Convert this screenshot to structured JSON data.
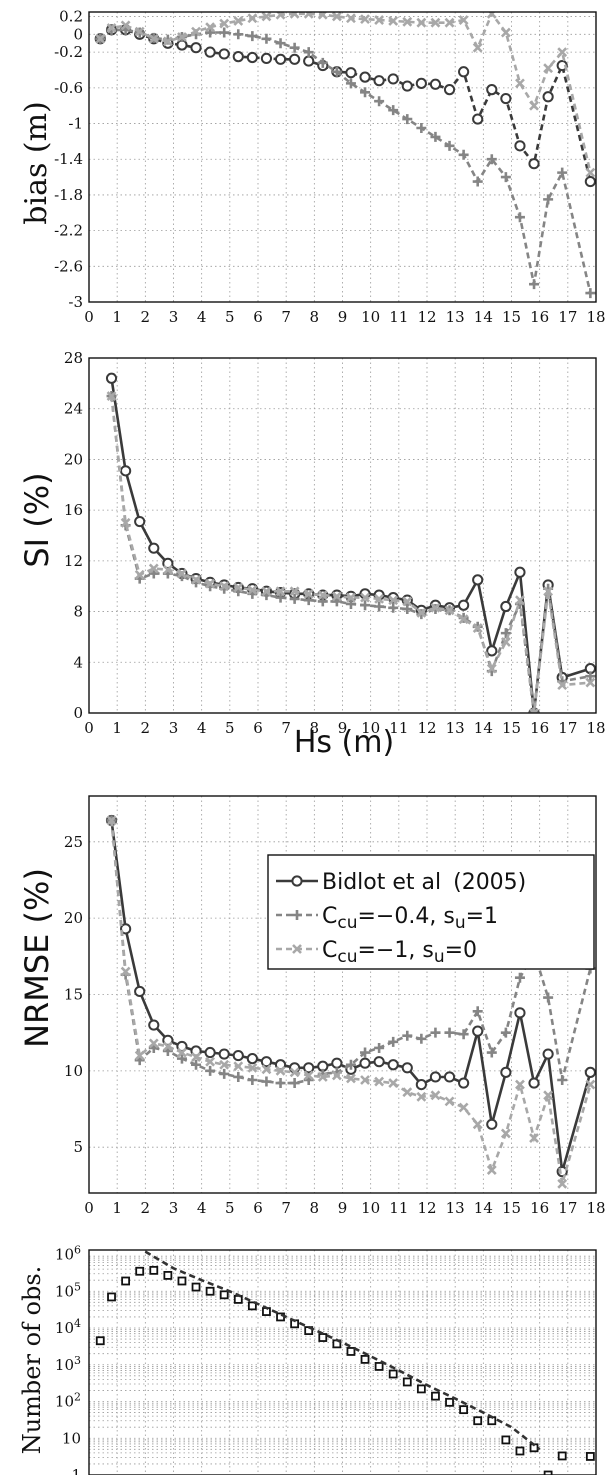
{
  "chart_data": [
    {
      "id": "bias",
      "type": "line",
      "ylabel": "bias (m)",
      "xlabel": "",
      "xlim": [
        0,
        18
      ],
      "ylim": [
        -3,
        0.25
      ],
      "xticks": [
        0,
        1,
        2,
        3,
        4,
        5,
        6,
        7,
        8,
        9,
        10,
        11,
        12,
        13,
        14,
        15,
        16,
        17,
        18
      ],
      "yticks": [
        0.2,
        0,
        -0.2,
        -0.6,
        -1,
        -1.4,
        -1.8,
        -2.2,
        -2.6,
        -3
      ],
      "ytick_labels": [
        "0.2",
        "0",
        "-0.2",
        "-0.6",
        "-1",
        "-1.4",
        "-1.8",
        "-2.2",
        "-2.6",
        "-3"
      ],
      "grid": true,
      "series": [
        {
          "name": "Bidlot et al (2005)",
          "color": "#3a3a3a",
          "marker": "o",
          "dash": "6,4",
          "x": [
            0.4,
            0.8,
            1.3,
            1.8,
            2.3,
            2.8,
            3.3,
            3.8,
            4.3,
            4.8,
            5.3,
            5.8,
            6.3,
            6.8,
            7.3,
            7.8,
            8.3,
            8.8,
            9.3,
            9.8,
            10.3,
            10.8,
            11.3,
            11.8,
            12.3,
            12.8,
            13.3,
            13.8,
            14.3,
            14.8,
            15.3,
            15.8,
            16.3,
            16.8,
            17.8
          ],
          "y": [
            -0.05,
            0.05,
            0.05,
            0.0,
            -0.05,
            -0.1,
            -0.12,
            -0.15,
            -0.2,
            -0.22,
            -0.25,
            -0.26,
            -0.27,
            -0.28,
            -0.28,
            -0.3,
            -0.35,
            -0.42,
            -0.43,
            -0.48,
            -0.52,
            -0.5,
            -0.58,
            -0.55,
            -0.56,
            -0.62,
            -0.42,
            -0.95,
            -0.62,
            -0.72,
            -1.25,
            -1.45,
            -0.7,
            -0.35,
            -1.65
          ]
        },
        {
          "name": "Ccu=−0.4, su=1",
          "color": "#858585",
          "marker": "+",
          "dash": "6,4",
          "x": [
            0.4,
            0.8,
            1.3,
            1.8,
            2.3,
            2.8,
            3.3,
            3.8,
            4.3,
            4.8,
            5.3,
            5.8,
            6.3,
            6.8,
            7.3,
            7.8,
            8.3,
            8.8,
            9.3,
            9.8,
            10.3,
            10.8,
            11.3,
            11.8,
            12.3,
            12.8,
            13.3,
            13.8,
            14.3,
            14.8,
            15.3,
            15.8,
            16.3,
            16.8,
            17.8
          ],
          "y": [
            -0.05,
            0.05,
            0.05,
            0.02,
            -0.04,
            -0.06,
            -0.03,
            0.0,
            0.02,
            0.02,
            0.0,
            -0.02,
            -0.05,
            -0.1,
            -0.15,
            -0.2,
            -0.32,
            -0.42,
            -0.55,
            -0.65,
            -0.75,
            -0.85,
            -0.95,
            -1.05,
            -1.15,
            -1.25,
            -1.35,
            -1.65,
            -1.4,
            -1.6,
            -2.05,
            -2.8,
            -1.85,
            -1.55,
            -2.9
          ]
        },
        {
          "name": "Ccu=−1,    su=0",
          "color": "#a8a8a8",
          "marker": "x",
          "dash": "6,4",
          "x": [
            0.4,
            0.8,
            1.3,
            1.8,
            2.3,
            2.8,
            3.3,
            3.8,
            4.3,
            4.8,
            5.3,
            5.8,
            6.3,
            6.8,
            7.3,
            7.8,
            8.3,
            8.8,
            9.3,
            9.8,
            10.3,
            10.8,
            11.3,
            11.8,
            12.3,
            12.8,
            13.3,
            13.8,
            14.3,
            14.8,
            15.3,
            15.8,
            16.3,
            16.8,
            17.8
          ],
          "y": [
            -0.05,
            0.07,
            0.1,
            0.03,
            -0.05,
            -0.08,
            -0.03,
            0.03,
            0.08,
            0.12,
            0.15,
            0.18,
            0.2,
            0.22,
            0.23,
            0.23,
            0.22,
            0.2,
            0.18,
            0.17,
            0.16,
            0.15,
            0.14,
            0.13,
            0.13,
            0.13,
            0.16,
            -0.15,
            0.23,
            0.02,
            -0.55,
            -0.8,
            -0.38,
            -0.2,
            -1.55
          ]
        }
      ]
    },
    {
      "id": "si",
      "type": "line",
      "ylabel": "SI (%)",
      "xlabel": "Hs (m)",
      "xlim": [
        0,
        18
      ],
      "ylim": [
        0,
        28
      ],
      "xticks": [
        0,
        1,
        2,
        3,
        4,
        5,
        6,
        7,
        8,
        9,
        10,
        11,
        12,
        13,
        14,
        15,
        16,
        17,
        18
      ],
      "yticks": [
        0,
        4,
        8,
        12,
        16,
        20,
        24,
        28
      ],
      "grid": true,
      "series": [
        {
          "name": "Bidlot et al (2005)",
          "color": "#3a3a3a",
          "marker": "o",
          "dash": "",
          "x": [
            0.8,
            1.3,
            1.8,
            2.3,
            2.8,
            3.3,
            3.8,
            4.3,
            4.8,
            5.3,
            5.8,
            6.3,
            6.8,
            7.3,
            7.8,
            8.3,
            8.8,
            9.3,
            9.8,
            10.3,
            10.8,
            11.3,
            11.8,
            12.3,
            12.8,
            13.3,
            13.8,
            14.3,
            14.8,
            15.3,
            15.8,
            16.3,
            16.8,
            17.8
          ],
          "y": [
            26.4,
            19.1,
            15.1,
            13.0,
            11.8,
            11.0,
            10.6,
            10.3,
            10.1,
            9.9,
            9.8,
            9.6,
            9.5,
            9.4,
            9.4,
            9.3,
            9.3,
            9.2,
            9.4,
            9.3,
            9.1,
            8.9,
            8.1,
            8.5,
            8.3,
            8.5,
            10.5,
            4.9,
            8.4,
            11.1,
            0.0,
            10.1,
            2.8,
            3.5
          ]
        },
        {
          "name": "Ccu=−0.4, su=1",
          "color": "#858585",
          "marker": "+",
          "dash": "6,4",
          "x": [
            0.8,
            1.3,
            1.8,
            2.3,
            2.8,
            3.3,
            3.8,
            4.3,
            4.8,
            5.3,
            5.8,
            6.3,
            6.8,
            7.3,
            7.8,
            8.3,
            8.8,
            9.3,
            9.8,
            10.3,
            10.8,
            11.3,
            11.8,
            12.3,
            12.8,
            13.3,
            13.8,
            14.3,
            14.8,
            15.3,
            15.8,
            16.3,
            16.8,
            17.8
          ],
          "y": [
            25.0,
            14.8,
            10.6,
            11.0,
            11.0,
            10.8,
            10.3,
            10.0,
            9.8,
            9.6,
            9.4,
            9.3,
            9.1,
            9.0,
            8.9,
            8.8,
            8.8,
            8.6,
            8.5,
            8.4,
            8.3,
            8.2,
            7.8,
            8.2,
            8.1,
            7.5,
            6.8,
            3.3,
            6.3,
            8.6,
            0.0,
            9.8,
            2.5,
            2.9
          ]
        },
        {
          "name": "Ccu=−1,    su=0",
          "color": "#a8a8a8",
          "marker": "x",
          "dash": "6,4",
          "x": [
            0.8,
            1.3,
            1.8,
            2.3,
            2.8,
            3.3,
            3.8,
            4.3,
            4.8,
            5.3,
            5.8,
            6.3,
            6.8,
            7.3,
            7.8,
            8.3,
            8.8,
            9.3,
            9.8,
            10.3,
            10.8,
            11.3,
            11.8,
            12.3,
            12.8,
            13.3,
            13.8,
            14.3,
            14.8,
            15.3,
            15.8,
            16.3,
            16.8,
            17.8
          ],
          "y": [
            25.0,
            15.0,
            10.9,
            11.4,
            11.3,
            11.0,
            10.5,
            10.2,
            10.0,
            9.9,
            9.7,
            9.6,
            9.6,
            9.6,
            9.4,
            9.3,
            9.2,
            9.1,
            9.1,
            9.0,
            8.9,
            8.8,
            7.9,
            8.3,
            8.1,
            7.4,
            6.7,
            3.5,
            5.6,
            8.9,
            0.0,
            9.6,
            2.2,
            2.4
          ]
        }
      ]
    },
    {
      "id": "nrmse",
      "type": "line",
      "ylabel": "NRMSE (%)",
      "xlabel": "",
      "xlim": [
        0,
        18
      ],
      "ylim": [
        2,
        28
      ],
      "xticks": [
        0,
        1,
        2,
        3,
        4,
        5,
        6,
        7,
        8,
        9,
        10,
        11,
        12,
        13,
        14,
        15,
        16,
        17,
        18
      ],
      "yticks": [
        5,
        10,
        15,
        20,
        25
      ],
      "grid": true,
      "legend": {
        "placement": "right",
        "entries": [
          {
            "prefix": "",
            "main": "Bidlot et al",
            "spacer": "  ",
            "sub": "",
            "after": "",
            "tail": "(2005)"
          },
          {
            "prefix": "C",
            "main": "",
            "spacer": "",
            "sub": "cu",
            "after": "=−0.4, ",
            "tail": "s",
            "sub2": "u",
            "tail2": "=1"
          },
          {
            "prefix": "C",
            "main": "",
            "spacer": "",
            "sub": "cu",
            "after": "=−1,     ",
            "tail": "s",
            "sub2": "u",
            "tail2": "=0"
          }
        ]
      },
      "series": [
        {
          "name": "Bidlot et al (2005)",
          "color": "#3a3a3a",
          "marker": "o",
          "dash": "",
          "x": [
            0.8,
            1.3,
            1.8,
            2.3,
            2.8,
            3.3,
            3.8,
            4.3,
            4.8,
            5.3,
            5.8,
            6.3,
            6.8,
            7.3,
            7.8,
            8.3,
            8.8,
            9.3,
            9.8,
            10.3,
            10.8,
            11.3,
            11.8,
            12.3,
            12.8,
            13.3,
            13.8,
            14.3,
            14.8,
            15.3,
            15.8,
            16.3,
            16.8,
            17.8
          ],
          "y": [
            26.4,
            19.3,
            15.2,
            13.0,
            12.0,
            11.6,
            11.3,
            11.2,
            11.1,
            11.0,
            10.8,
            10.6,
            10.4,
            10.2,
            10.2,
            10.3,
            10.5,
            10.1,
            10.5,
            10.6,
            10.4,
            10.2,
            9.1,
            9.6,
            9.6,
            9.2,
            12.6,
            6.5,
            9.9,
            13.8,
            9.2,
            11.1,
            3.4,
            9.9
          ]
        },
        {
          "name": "Ccu=−0.4, su=1",
          "color": "#858585",
          "marker": "+",
          "dash": "6,4",
          "x": [
            0.8,
            1.3,
            1.8,
            2.3,
            2.8,
            3.3,
            3.8,
            4.3,
            4.8,
            5.3,
            5.8,
            6.3,
            6.8,
            7.3,
            7.8,
            8.3,
            8.8,
            9.3,
            9.8,
            10.3,
            10.8,
            11.3,
            11.8,
            12.3,
            12.8,
            13.3,
            13.8,
            14.3,
            14.8,
            15.3,
            15.8,
            16.3,
            16.8,
            17.8
          ],
          "y": [
            26.4,
            16.3,
            10.7,
            11.5,
            11.3,
            10.8,
            10.4,
            10.0,
            9.8,
            9.6,
            9.4,
            9.3,
            9.2,
            9.2,
            9.4,
            9.8,
            9.9,
            10.4,
            11.2,
            11.5,
            11.9,
            12.3,
            12.1,
            12.5,
            12.5,
            12.4,
            13.9,
            11.2,
            12.5,
            16.1,
            17.8,
            14.8,
            9.4,
            16.7
          ]
        },
        {
          "name": "Ccu=−1,    su=0",
          "color": "#a8a8a8",
          "marker": "x",
          "dash": "6,4",
          "x": [
            0.8,
            1.3,
            1.8,
            2.3,
            2.8,
            3.3,
            3.8,
            4.3,
            4.8,
            5.3,
            5.8,
            6.3,
            6.8,
            7.3,
            7.8,
            8.3,
            8.8,
            9.3,
            9.8,
            10.3,
            10.8,
            11.3,
            11.8,
            12.3,
            12.8,
            13.3,
            13.8,
            14.3,
            14.8,
            15.3,
            15.8,
            16.3,
            16.8,
            17.8
          ],
          "y": [
            26.4,
            16.5,
            11.0,
            11.8,
            11.6,
            11.2,
            10.9,
            10.6,
            10.4,
            10.3,
            10.2,
            10.1,
            10.0,
            9.9,
            9.7,
            9.6,
            9.7,
            9.5,
            9.4,
            9.3,
            9.2,
            8.6,
            8.3,
            8.4,
            8.0,
            7.6,
            6.5,
            3.5,
            5.9,
            9.1,
            5.6,
            8.4,
            2.6,
            9.1
          ]
        }
      ]
    },
    {
      "id": "nobs",
      "type": "scatter",
      "ylabel": "Number of obs.",
      "xlabel": "",
      "xlim": [
        0,
        18
      ],
      "ylim": [
        1,
        1000000
      ],
      "yscale": "log",
      "yticks": [
        1,
        10,
        100,
        1000,
        10000,
        100000,
        1000000
      ],
      "ytick_labels": [
        {
          "base": "1",
          "exp": ""
        },
        {
          "base": "10",
          "exp": ""
        },
        {
          "base": "10",
          "exp": "2"
        },
        {
          "base": "10",
          "exp": "3"
        },
        {
          "base": "10",
          "exp": "4"
        },
        {
          "base": "10",
          "exp": "5"
        },
        {
          "base": "10",
          "exp": "6"
        }
      ],
      "grid": true,
      "series": [
        {
          "name": "",
          "color": "#111111",
          "marker": "square",
          "x": [
            0.4,
            0.8,
            1.3,
            1.8,
            2.3,
            2.8,
            3.3,
            3.8,
            4.3,
            4.8,
            5.3,
            5.8,
            6.3,
            6.8,
            7.3,
            7.8,
            8.3,
            8.8,
            9.3,
            9.8,
            10.3,
            10.8,
            11.3,
            11.8,
            12.3,
            12.8,
            13.3,
            13.8,
            14.3,
            14.8,
            15.3,
            15.8,
            16.3,
            16.8,
            17.8
          ],
          "y": [
            4500,
            70000,
            190000,
            350000,
            370000,
            270000,
            190000,
            130000,
            100000,
            80000,
            60000,
            40000,
            28000,
            20000,
            13000,
            8500,
            5500,
            3700,
            2300,
            1400,
            900,
            560,
            340,
            220,
            140,
            95,
            60,
            30,
            30,
            9,
            4.5,
            5.5,
            1,
            3.3,
            3.2
          ]
        },
        {
          "name": "",
          "color": "#333333",
          "marker": "none",
          "dash": "6,4",
          "x": [
            2.0,
            3.0,
            4.0,
            5.0,
            6.0,
            7.0,
            8.0,
            9.0,
            10.0,
            11.0,
            12.0,
            13.0,
            14.0,
            15.0,
            16.0
          ],
          "y": [
            1200000,
            420000,
            200000,
            100000,
            45000,
            20000,
            9000,
            4000,
            1700,
            700,
            280,
            120,
            50,
            20,
            5
          ]
        }
      ]
    }
  ]
}
